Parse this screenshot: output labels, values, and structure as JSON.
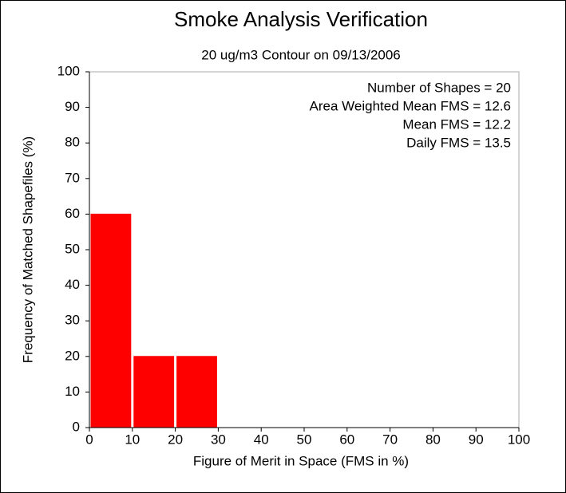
{
  "chart_data": {
    "type": "histogram",
    "title": "Smoke Analysis Verification",
    "subtitle": "20 ug/m3 Contour on 09/13/2006",
    "x_label": "Figure of Merit in Space (FMS in %)",
    "y_label": "Frequency of Matched Shapefiles (%)",
    "bins": [
      0,
      10,
      20,
      30,
      40,
      50,
      60,
      70,
      80,
      90,
      100
    ],
    "values": [
      60,
      20,
      20,
      0,
      0,
      0,
      0,
      0,
      0,
      0
    ],
    "color": "#ff0000",
    "xlim": [
      0,
      100
    ],
    "ylim": [
      0,
      100
    ],
    "xticks": [
      0,
      10,
      20,
      30,
      40,
      50,
      60,
      70,
      80,
      90,
      100
    ],
    "yticks": [
      0,
      10,
      20,
      30,
      40,
      50,
      60,
      70,
      80,
      90,
      100
    ],
    "annotations": [
      "Number of Shapes = 20",
      "Area Weighted Mean FMS = 12.6",
      "Mean FMS = 12.2",
      "Daily FMS = 13.5"
    ]
  }
}
